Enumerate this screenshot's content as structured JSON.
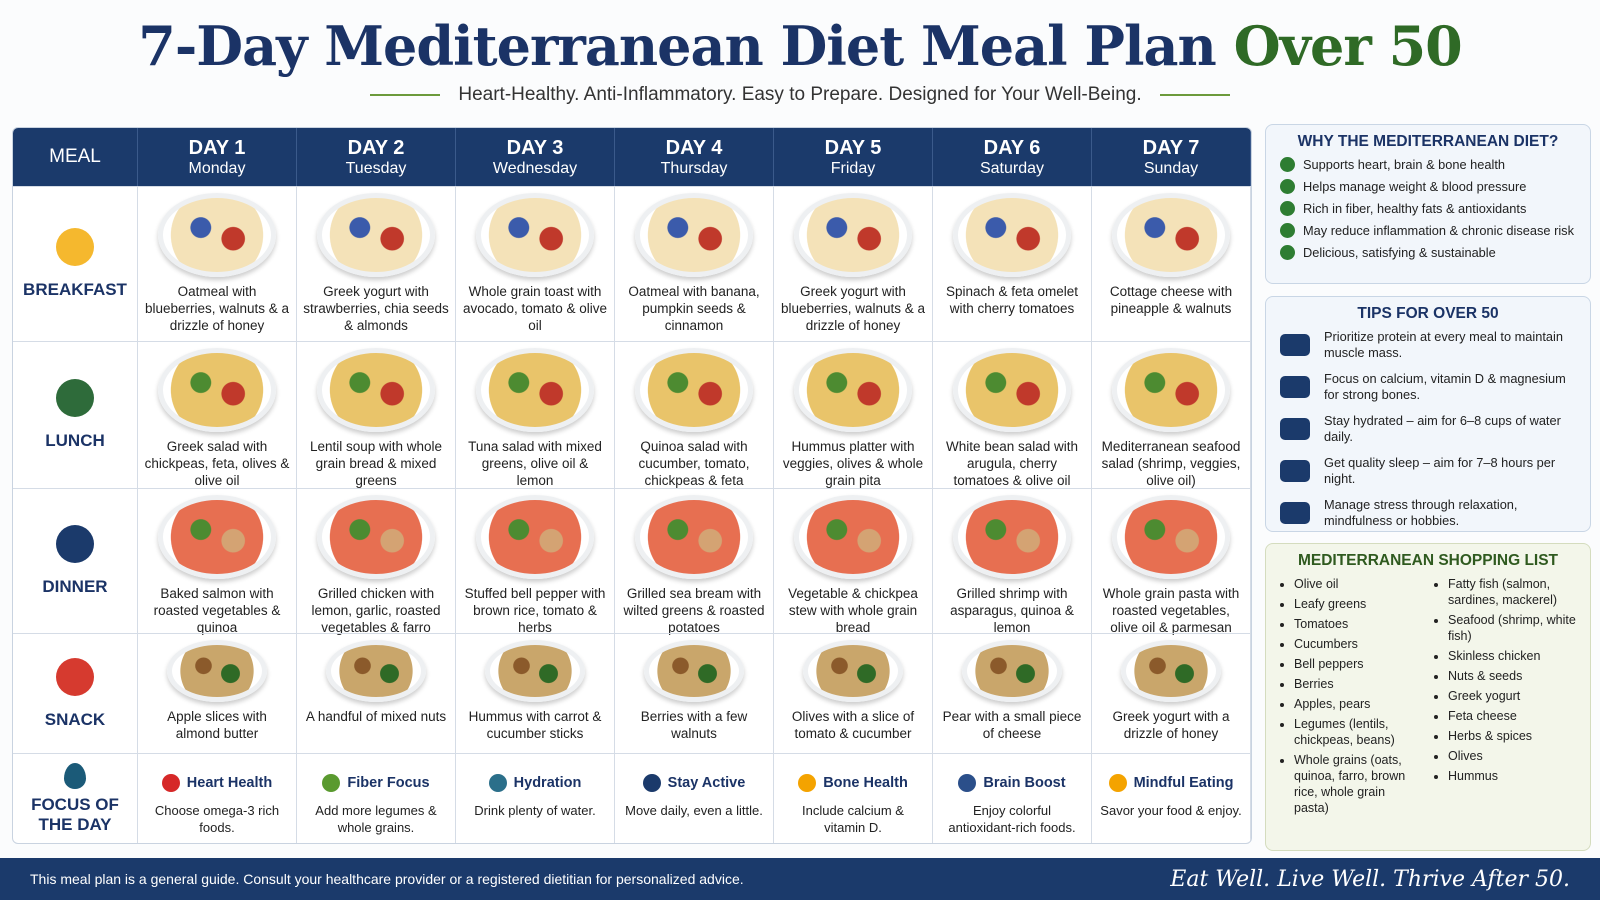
{
  "header": {
    "title": "7-Day Mediterranean Diet Meal Plan",
    "title_accent": "Over 50",
    "subtitle": "Heart-Healthy. Anti-Inflammatory. Easy to Prepare. Designed for Your Well-Being."
  },
  "table": {
    "meal_header": "MEAL",
    "days": [
      {
        "label": "DAY 1",
        "weekday": "Monday"
      },
      {
        "label": "DAY 2",
        "weekday": "Tuesday"
      },
      {
        "label": "DAY 3",
        "weekday": "Wednesday"
      },
      {
        "label": "DAY 4",
        "weekday": "Thursday"
      },
      {
        "label": "DAY 5",
        "weekday": "Friday"
      },
      {
        "label": "DAY 6",
        "weekday": "Saturday"
      },
      {
        "label": "DAY 7",
        "weekday": "Sunday"
      }
    ],
    "rows": [
      {
        "meal": "BREAKFAST",
        "cells": [
          "Oatmeal with blueberries, walnuts & a drizzle of honey",
          "Greek yogurt with strawberries, chia seeds & almonds",
          "Whole grain toast with avocado, tomato & olive oil",
          "Oatmeal with banana, pumpkin seeds & cinnamon",
          "Greek yogurt with blueberries, walnuts & a drizzle of honey",
          "Spinach & feta omelet with cherry tomatoes",
          "Cottage cheese with pineapple & walnuts"
        ]
      },
      {
        "meal": "LUNCH",
        "cells": [
          "Greek salad with chickpeas, feta, olives & olive oil",
          "Lentil soup with whole grain bread & mixed greens",
          "Tuna salad with mixed greens, olive oil & lemon",
          "Quinoa salad with cucumber, tomato, chickpeas & feta",
          "Hummus platter with veggies, olives & whole grain pita",
          "White bean salad with arugula, cherry tomatoes & olive oil",
          "Mediterranean seafood salad (shrimp, veggies, olive oil)"
        ]
      },
      {
        "meal": "DINNER",
        "cells": [
          "Baked salmon with roasted vegetables & quinoa",
          "Grilled chicken with lemon, garlic, roasted vegetables & farro",
          "Stuffed bell pepper with brown rice, tomato & herbs",
          "Grilled sea bream with wilted greens & roasted potatoes",
          "Vegetable & chickpea stew with whole grain bread",
          "Grilled shrimp with asparagus, quinoa & lemon",
          "Whole grain pasta with roasted vegetables, olive oil & parmesan"
        ]
      },
      {
        "meal": "SNACK",
        "cells": [
          "Apple slices with almond butter",
          "A handful of mixed nuts",
          "Hummus with carrot & cucumber sticks",
          "Berries with a few walnuts",
          "Olives with a slice of tomato & cucumber",
          "Pear with a small piece of cheese",
          "Greek yogurt with a drizzle of honey"
        ]
      }
    ],
    "focus": {
      "label": "FOCUS OF THE DAY",
      "items": [
        {
          "title": "Heart Health",
          "text": "Choose omega-3 rich foods."
        },
        {
          "title": "Fiber Focus",
          "text": "Add more legumes & whole grains."
        },
        {
          "title": "Hydration",
          "text": "Drink plenty of water."
        },
        {
          "title": "Stay Active",
          "text": "Move daily, even a little."
        },
        {
          "title": "Bone Health",
          "text": "Include calcium & vitamin D."
        },
        {
          "title": "Brain Boost",
          "text": "Enjoy colorful antioxidant-rich foods."
        },
        {
          "title": "Mindful Eating",
          "text": "Savor your food & enjoy."
        }
      ]
    }
  },
  "sidebar": {
    "why": {
      "title": "WHY THE MEDITERRANEAN DIET?",
      "items": [
        "Supports heart, brain & bone health",
        "Helps manage weight & blood pressure",
        "Rich in fiber, healthy fats & antioxidants",
        "May reduce inflammation & chronic disease risk",
        "Delicious, satisfying & sustainable"
      ]
    },
    "tips": {
      "title": "TIPS FOR OVER 50",
      "items": [
        "Prioritize protein at every meal to maintain muscle mass.",
        "Focus on calcium, vitamin D & magnesium for strong bones.",
        "Stay hydrated – aim for 6–8 cups of water daily.",
        "Get quality sleep – aim for 7–8 hours per night.",
        "Manage stress through relaxation, mindfulness or hobbies."
      ]
    },
    "shopping": {
      "title": "MEDITERRANEAN SHOPPING LIST",
      "columns": [
        [
          "Olive oil",
          "Leafy greens",
          "Tomatoes",
          "Cucumbers",
          "Bell peppers",
          "Berries",
          "Apples, pears",
          "Legumes (lentils, chickpeas, beans)",
          "Whole grains (oats, quinoa, farro, brown rice, whole grain pasta)"
        ],
        [
          "Fatty fish (salmon, sardines, mackerel)",
          "Seafood (shrimp, white fish)",
          "Skinless chicken",
          "Nuts & seeds",
          "Greek yogurt",
          "Feta cheese",
          "Herbs & spices",
          "Olives",
          "Hummus"
        ]
      ]
    }
  },
  "footer": {
    "disclaimer": "This meal plan is a general guide. Consult your healthcare provider or a registered dietitian for personalized advice.",
    "tagline": "Eat Well. Live Well. Thrive After 50."
  }
}
